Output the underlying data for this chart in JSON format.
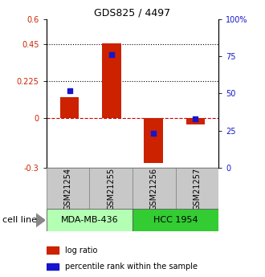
{
  "title": "GDS825 / 4497",
  "samples": [
    "GSM21254",
    "GSM21255",
    "GSM21256",
    "GSM21257"
  ],
  "log_ratios": [
    0.13,
    0.455,
    -0.27,
    -0.04
  ],
  "percentile_ranks": [
    52,
    76,
    23,
    33
  ],
  "cell_lines": [
    {
      "label": "MDA-MB-436",
      "samples": [
        0,
        1
      ],
      "color": "#b3ffb3"
    },
    {
      "label": "HCC 1954",
      "samples": [
        2,
        3
      ],
      "color": "#33cc33"
    }
  ],
  "ylim_left": [
    -0.3,
    0.6
  ],
  "ylim_right": [
    0,
    100
  ],
  "yticks_left": [
    -0.3,
    0,
    0.225,
    0.45,
    0.6
  ],
  "yticks_right": [
    0,
    25,
    50,
    75,
    100
  ],
  "ytick_labels_left": [
    "-0.3",
    "0",
    "0.225",
    "0.45",
    "0.6"
  ],
  "ytick_labels_right": [
    "0",
    "25",
    "50",
    "75",
    "100%"
  ],
  "hlines_dotted": [
    0.225,
    0.45
  ],
  "hline_zero_color": "#cc0000",
  "bar_color_red": "#cc2200",
  "bar_color_blue": "#1515cc",
  "bar_width": 0.45,
  "sample_box_color": "#c8c8c8",
  "legend_red_label": "log ratio",
  "legend_blue_label": "percentile rank within the sample",
  "cell_line_label": "cell line",
  "background_color": "#ffffff",
  "title_fontsize": 9,
  "tick_fontsize": 7,
  "legend_fontsize": 7,
  "cell_line_fontsize": 8,
  "sample_fontsize": 7
}
